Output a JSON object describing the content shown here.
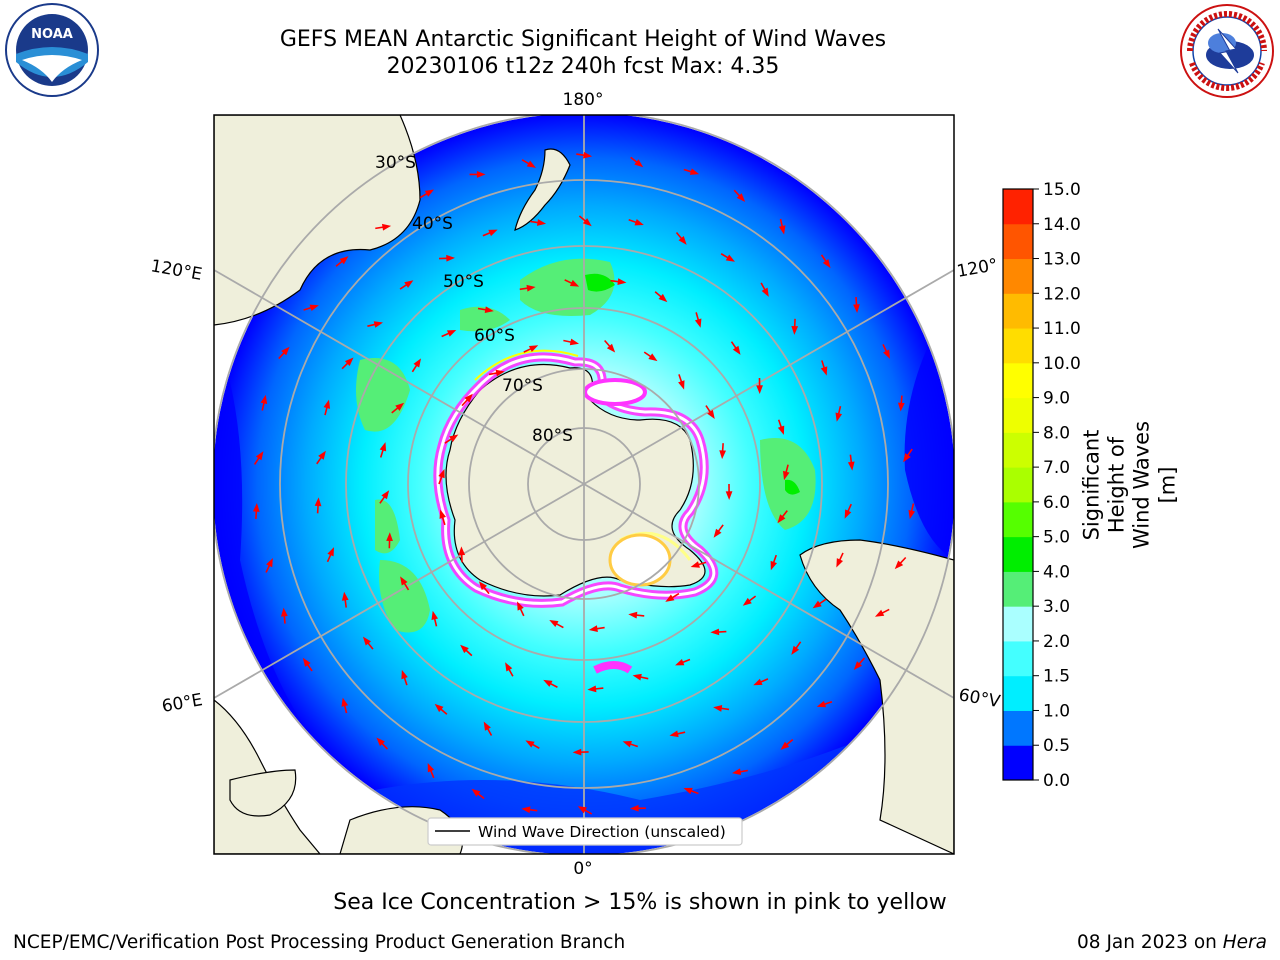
{
  "header": {
    "title_line1": "GEFS MEAN Antarctic Significant Height of Wind Waves",
    "title_line2": "20230106 t12z 240h fcst   Max: 4.35"
  },
  "map": {
    "projection": "south-polar-stereographic",
    "lat_labels": [
      "30°S",
      "40°S",
      "50°S",
      "60°S",
      "70°S",
      "80°S"
    ],
    "lon_labels": {
      "top": "180°",
      "bottom": "0°",
      "upper_left": "120°E",
      "upper_right": "120°",
      "lower_left": "60°E",
      "lower_right": "60°V"
    },
    "legend_label": "Wind Wave Direction (unscaled)",
    "arrow_color": "#ff0000",
    "land_color": "#efefdb",
    "sea_ice_colors": [
      "#ff33ff",
      "#ffffff",
      "#ffff00"
    ]
  },
  "colorbar": {
    "label": "Significant Height of Wind Waves [m]",
    "ticks": [
      "0.0",
      "0.5",
      "1.0",
      "1.5",
      "2.0",
      "3.0",
      "4.0",
      "5.0",
      "6.0",
      "7.0",
      "8.0",
      "9.0",
      "10.0",
      "11.0",
      "12.0",
      "13.0",
      "14.0",
      "15.0"
    ],
    "colors": [
      "#0000ff",
      "#0077ff",
      "#00eeff",
      "#44ffff",
      "#aaffff",
      "#55ee77",
      "#00ee00",
      "#55ff00",
      "#aaff00",
      "#ccff00",
      "#eeff00",
      "#ffff00",
      "#ffdd00",
      "#ffbb00",
      "#ff8800",
      "#ff5500",
      "#ff2200"
    ]
  },
  "footer": {
    "note": "Sea Ice Concentration > 15% is shown in pink to yellow",
    "credit": "NCEP/EMC/Verification Post Processing Product Generation Branch",
    "date_prefix": "08 Jan 2023 on ",
    "date_system": "Hera"
  },
  "logos": {
    "left": "noa-logo",
    "right": "nws-logo"
  }
}
